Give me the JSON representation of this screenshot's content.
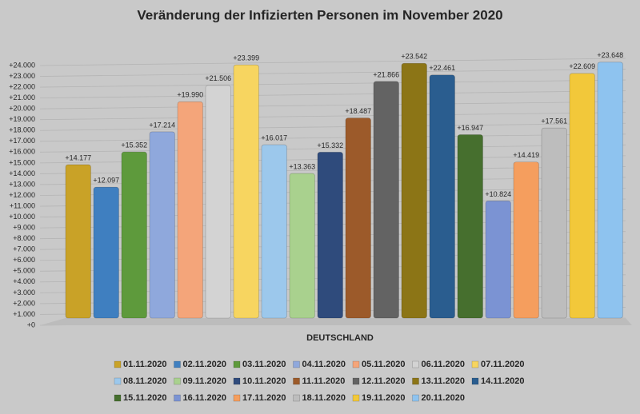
{
  "chart_data": {
    "type": "bar",
    "title": "Veränderung der Infizierten Personen im November 2020",
    "categories": [
      "DEUTSCHLAND"
    ],
    "ylim": [
      0,
      24000
    ],
    "yticks": [
      {
        "value": 0,
        "label": "+0"
      },
      {
        "value": 1000,
        "label": "+1.000"
      },
      {
        "value": 2000,
        "label": "+2.000"
      },
      {
        "value": 3000,
        "label": "+3.000"
      },
      {
        "value": 4000,
        "label": "+4.000"
      },
      {
        "value": 5000,
        "label": "+5.000"
      },
      {
        "value": 6000,
        "label": "+6.000"
      },
      {
        "value": 7000,
        "label": "+7.000"
      },
      {
        "value": 8000,
        "label": "+8.000"
      },
      {
        "value": 9000,
        "label": "+9.000"
      },
      {
        "value": 10000,
        "label": "+10.000"
      },
      {
        "value": 11000,
        "label": "+11.000"
      },
      {
        "value": 12000,
        "label": "+12.000"
      },
      {
        "value": 13000,
        "label": "+13.000"
      },
      {
        "value": 14000,
        "label": "+14.000"
      },
      {
        "value": 15000,
        "label": "+15.000"
      },
      {
        "value": 16000,
        "label": "+16.000"
      },
      {
        "value": 17000,
        "label": "+17.000"
      },
      {
        "value": 18000,
        "label": "+18.000"
      },
      {
        "value": 19000,
        "label": "+19.000"
      },
      {
        "value": 20000,
        "label": "+20.000"
      },
      {
        "value": 21000,
        "label": "+21.000"
      },
      {
        "value": 22000,
        "label": "+22.000"
      },
      {
        "value": 23000,
        "label": "+23.000"
      },
      {
        "value": 24000,
        "label": "+24.000"
      }
    ],
    "grid": true,
    "series": [
      {
        "name": "01.11.2020",
        "color": "#c9a227",
        "values": [
          14177
        ],
        "value_labels": [
          "+14.177"
        ]
      },
      {
        "name": "02.11.2020",
        "color": "#3f7fc0",
        "values": [
          12097
        ],
        "value_labels": [
          "+12.097"
        ]
      },
      {
        "name": "03.11.2020",
        "color": "#5e9a3c",
        "values": [
          15352
        ],
        "value_labels": [
          "+15.352"
        ]
      },
      {
        "name": "04.11.2020",
        "color": "#8fa8dc",
        "values": [
          17214
        ],
        "value_labels": [
          "+17.214"
        ]
      },
      {
        "name": "05.11.2020",
        "color": "#f4a57a",
        "values": [
          19990
        ],
        "value_labels": [
          "+19.990"
        ]
      },
      {
        "name": "06.11.2020",
        "color": "#d3d3d3",
        "values": [
          21506
        ],
        "value_labels": [
          "+21.506"
        ]
      },
      {
        "name": "07.11.2020",
        "color": "#f7d560",
        "values": [
          23399
        ],
        "value_labels": [
          "+23.399"
        ]
      },
      {
        "name": "08.11.2020",
        "color": "#9cc8ec",
        "values": [
          16017
        ],
        "value_labels": [
          "+16.017"
        ]
      },
      {
        "name": "09.11.2020",
        "color": "#a9d18e",
        "values": [
          13363
        ],
        "value_labels": [
          "+13.363"
        ]
      },
      {
        "name": "10.11.2020",
        "color": "#2f4b7c",
        "values": [
          15332
        ],
        "value_labels": [
          "+15.332"
        ]
      },
      {
        "name": "11.11.2020",
        "color": "#9c5a2a",
        "values": [
          18487
        ],
        "value_labels": [
          "+18.487"
        ]
      },
      {
        "name": "12.11.2020",
        "color": "#636363",
        "values": [
          21866
        ],
        "value_labels": [
          "+21.866"
        ]
      },
      {
        "name": "13.11.2020",
        "color": "#8c7516",
        "values": [
          23542
        ],
        "value_labels": [
          "+23.542"
        ]
      },
      {
        "name": "14.11.2020",
        "color": "#2a5d8f",
        "values": [
          22461
        ],
        "value_labels": [
          "+22.461"
        ]
      },
      {
        "name": "15.11.2020",
        "color": "#466f2e",
        "values": [
          16947
        ],
        "value_labels": [
          "+16.947"
        ]
      },
      {
        "name": "16.11.2020",
        "color": "#7b93d3",
        "values": [
          10824
        ],
        "value_labels": [
          "+10.824"
        ]
      },
      {
        "name": "17.11.2020",
        "color": "#f59e5e",
        "values": [
          14419
        ],
        "value_labels": [
          "+14.419"
        ]
      },
      {
        "name": "18.11.2020",
        "color": "#bdbdbd",
        "values": [
          17561
        ],
        "value_labels": [
          "+17.561"
        ]
      },
      {
        "name": "19.11.2020",
        "color": "#f2c83a",
        "values": [
          22609
        ],
        "value_labels": [
          "+22.609"
        ]
      },
      {
        "name": "20.11.2020",
        "color": "#8ec3ef",
        "values": [
          23648
        ],
        "value_labels": [
          "+23.648"
        ]
      }
    ]
  }
}
